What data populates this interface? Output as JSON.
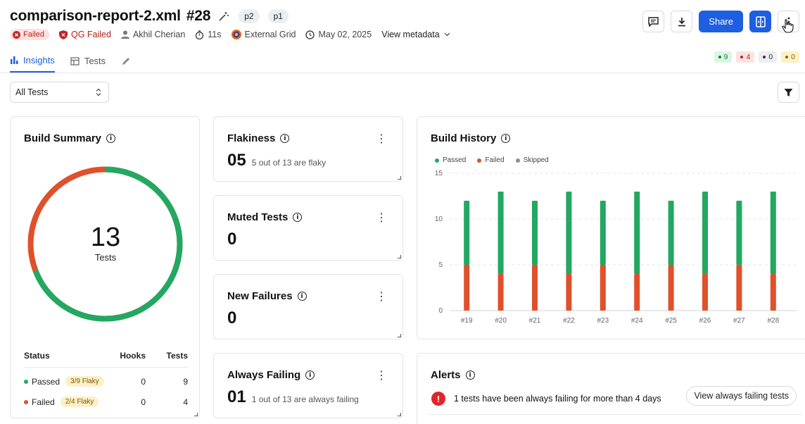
{
  "header": {
    "title": "comparison-report-2.xml",
    "build_number": "#28",
    "tags": [
      "p2",
      "p1"
    ],
    "status": "Failed",
    "quality_gate": "QG Failed",
    "author": "Akhil Cherian",
    "duration": "11s",
    "environment": "External Grid",
    "date": "May 02, 2025",
    "view_metadata": "View metadata",
    "share_label": "Share"
  },
  "tabs": [
    {
      "label": "Insights",
      "icon": "bar-chart-icon",
      "active": true
    },
    {
      "label": "Tests",
      "icon": "table-icon",
      "active": false
    }
  ],
  "counts": [
    {
      "value": "9",
      "bg": "#dcf5e3",
      "color": "#1a7f3c"
    },
    {
      "value": "4",
      "bg": "#fde2e1",
      "color": "#b42318"
    },
    {
      "value": "0",
      "bg": "#eceef1",
      "color": "#333333"
    },
    {
      "value": "0",
      "bg": "#fdf1c7",
      "color": "#8a6100"
    }
  ],
  "filter": {
    "selected": "All Tests"
  },
  "build_summary": {
    "title": "Build Summary",
    "total": "13",
    "total_label": "Tests",
    "passed_fraction": 0.6923,
    "columns": [
      "Status",
      "Hooks",
      "Tests"
    ],
    "rows": [
      {
        "status": "Passed",
        "flaky": "3/9 Flaky",
        "hooks": "0",
        "tests": "9",
        "color": "#22a861"
      },
      {
        "status": "Failed",
        "flaky": "2/4 Flaky",
        "hooks": "0",
        "tests": "4",
        "color": "#e0502b"
      }
    ]
  },
  "flakiness": {
    "title": "Flakiness",
    "value": "05",
    "detail": "5 out of 13 are flaky"
  },
  "muted": {
    "title": "Muted Tests",
    "value": "0"
  },
  "new_failures": {
    "title": "New Failures",
    "value": "0"
  },
  "always_failing": {
    "title": "Always Failing",
    "value": "01",
    "detail": "1 out of 13 are always failing"
  },
  "build_history": {
    "title": "Build History",
    "legend": [
      {
        "label": "Passed",
        "color": "#22a861"
      },
      {
        "label": "Failed",
        "color": "#e0502b"
      },
      {
        "label": "Skipped",
        "color": "#8a8f98"
      }
    ]
  },
  "chart_data": {
    "type": "bar",
    "stacked": true,
    "categories": [
      "#19",
      "#20",
      "#21",
      "#22",
      "#23",
      "#24",
      "#25",
      "#26",
      "#27",
      "#28"
    ],
    "series": [
      {
        "name": "Failed",
        "values": [
          5,
          4,
          5,
          4,
          5,
          4,
          5,
          4,
          5,
          4
        ],
        "color": "#e0502b"
      },
      {
        "name": "Passed",
        "values": [
          7,
          9,
          7,
          9,
          7,
          9,
          7,
          9,
          7,
          9
        ],
        "color": "#22a861"
      },
      {
        "name": "Skipped",
        "values": [
          0,
          0,
          0,
          0,
          0,
          0,
          0,
          0,
          0,
          0
        ],
        "color": "#8a8f98"
      }
    ],
    "ylim": [
      0,
      15
    ],
    "yticks": [
      "0",
      "5",
      "10",
      "15"
    ],
    "grid": true,
    "legend": "top-left"
  },
  "alerts": {
    "title": "Alerts",
    "message": "1 tests have been always failing for more than 4 days",
    "button": "View always failing tests"
  }
}
